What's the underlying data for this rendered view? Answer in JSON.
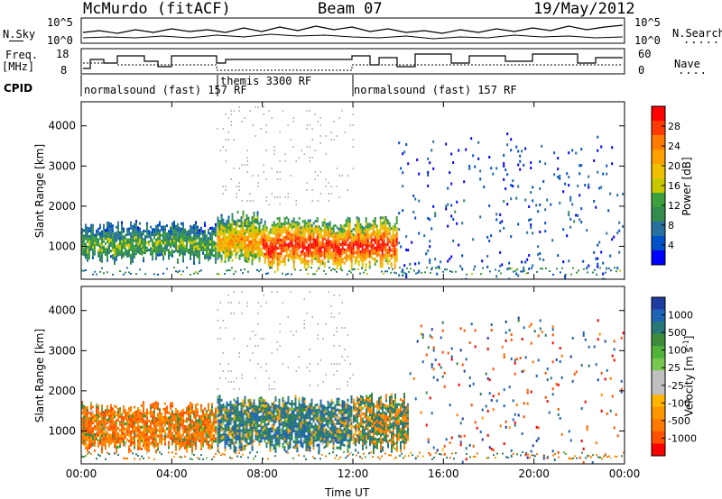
{
  "header": {
    "station": "McMurdo (fitACF)",
    "beam": "Beam 07",
    "date": "19/May/2012"
  },
  "panels": {
    "nsky_label": "N.Sky",
    "nsky_ticks": [
      "10^5",
      "10^0"
    ],
    "nsearch_label": "N.Search",
    "nsearch_ticks": [
      "10^5",
      "10^0"
    ],
    "freq_label": "Freq.",
    "freq_unit": "[MHz]",
    "freq_ticks": [
      "18",
      "8"
    ],
    "nave_label": "Nave",
    "nave_ticks": [
      "60",
      "0"
    ],
    "cpid_label": "CPID",
    "cpid_segments": [
      {
        "label": "normalsound (fast) 157 RF"
      },
      {
        "label": "themis 3300 RF"
      },
      {
        "label": "normalsound (fast) 157 RF"
      }
    ]
  },
  "colorbars": {
    "power": {
      "label": "Power [dB]",
      "ticks": [
        "28",
        "24",
        "20",
        "16",
        "12",
        "8",
        "4"
      ],
      "colors": [
        "#ff0000",
        "#ff3a00",
        "#ff7a00",
        "#ffa000",
        "#f0c000",
        "#c8c800",
        "#3ca03c",
        "#328c50",
        "#2870a0",
        "#0050c8",
        "#0000ff"
      ]
    },
    "velocity": {
      "label": "Velocity [m s",
      "label_sup": "-1",
      "label_end": "]",
      "ticks": [
        "1000",
        "500",
        "100",
        "25",
        "-25",
        "-100",
        "-500",
        "-1000"
      ],
      "colors": [
        "#1e3ca0",
        "#1e64b4",
        "#287878",
        "#3c8c3c",
        "#50b43c",
        "#78c850",
        "#c0c0c0",
        "#c0c0c0",
        "#ffb400",
        "#ff9600",
        "#ff7800",
        "#ff5000",
        "#ff0000"
      ]
    }
  },
  "chart_data": [
    {
      "type": "heatmap",
      "title": "Power",
      "ylabel": "Slant Range [km]",
      "xlabel": "Time UT",
      "ylim": [
        180,
        4600
      ],
      "xlim": [
        0,
        24
      ],
      "y_ticks": [
        "1000",
        "2000",
        "3000",
        "4000"
      ],
      "x_ticks": [
        "00:00",
        "04:00",
        "08:00",
        "12:00",
        "16:00",
        "20:00",
        "00:00"
      ],
      "echo_regions": [
        {
          "t_start": 0.0,
          "t_end": 6.0,
          "r_low": 700,
          "r_high": 1500,
          "level_db": 12
        },
        {
          "t_start": 6.0,
          "t_end": 8.0,
          "r_low": 700,
          "r_high": 1750,
          "level_db": 20
        },
        {
          "t_start": 8.0,
          "t_end": 14.0,
          "r_low": 550,
          "r_high": 1600,
          "level_db": 28
        },
        {
          "t_start": 14.0,
          "t_end": 24.0,
          "r_low": 180,
          "r_high": 3700,
          "level_db": 4
        }
      ]
    },
    {
      "type": "heatmap",
      "title": "Velocity",
      "ylabel": "Slant Range [km]",
      "xlabel": "Time UT",
      "ylim": [
        180,
        4600
      ],
      "xlim": [
        0,
        24
      ],
      "y_ticks": [
        "1000",
        "2000",
        "3000",
        "4000"
      ],
      "x_ticks": [
        "00:00",
        "04:00",
        "08:00",
        "12:00",
        "16:00",
        "20:00",
        "00:00"
      ],
      "echo_regions": [
        {
          "t_start": 0.0,
          "t_end": 6.0,
          "r_low": 600,
          "r_high": 1600,
          "velocity": -100
        },
        {
          "t_start": 6.0,
          "t_end": 12.0,
          "r_low": 600,
          "r_high": 1750,
          "velocity": 100
        },
        {
          "t_start": 12.0,
          "t_end": 14.5,
          "r_low": 600,
          "r_high": 1800,
          "velocity": 25
        },
        {
          "t_start": 14.5,
          "t_end": 24.0,
          "r_low": 180,
          "r_high": 3700,
          "velocity": -25
        }
      ]
    }
  ]
}
